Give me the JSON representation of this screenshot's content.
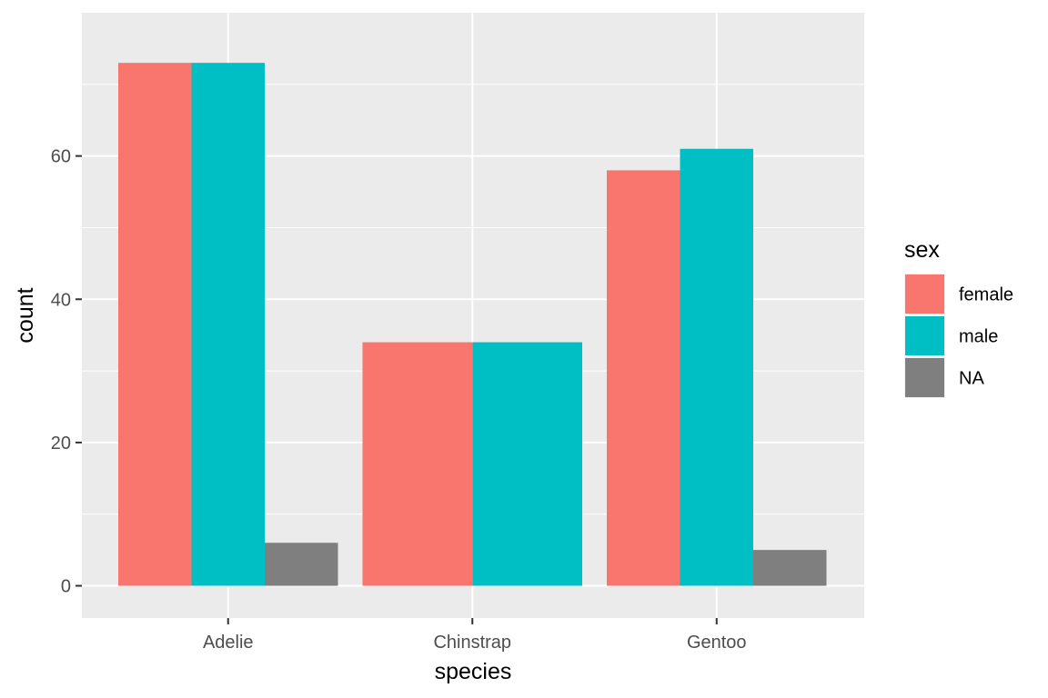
{
  "chart_data": {
    "type": "bar",
    "categories": [
      "Adelie",
      "Chinstrap",
      "Gentoo"
    ],
    "series": [
      {
        "name": "female",
        "color": "#F8766D",
        "values": [
          73,
          34,
          58
        ]
      },
      {
        "name": "male",
        "color": "#00BFC4",
        "values": [
          73,
          34,
          61
        ]
      },
      {
        "name": "NA",
        "color": "#7F7F7F",
        "values": [
          6,
          null,
          5
        ]
      }
    ],
    "xlabel": "species",
    "ylabel": "count",
    "ylim": [
      -4.5,
      80
    ],
    "yticks": [
      0,
      20,
      40,
      60
    ],
    "grid": true,
    "panel_background": "#EBEBEB",
    "legend": {
      "title": "sex",
      "placement": "right"
    }
  }
}
